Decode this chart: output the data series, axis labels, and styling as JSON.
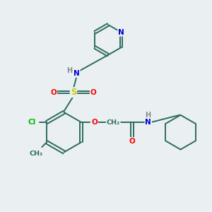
{
  "bg_color": "#eaf0f2",
  "bond_color": "#2d6b5e",
  "atom_colors": {
    "N": "#0000cc",
    "O": "#ff0000",
    "S": "#cccc00",
    "Cl": "#00bb00",
    "H_label": "#888888",
    "C": "#2d6b5e"
  },
  "figsize": [
    3.0,
    3.0
  ],
  "dpi": 100,
  "xlim": [
    0,
    10
  ],
  "ylim": [
    0,
    10
  ]
}
